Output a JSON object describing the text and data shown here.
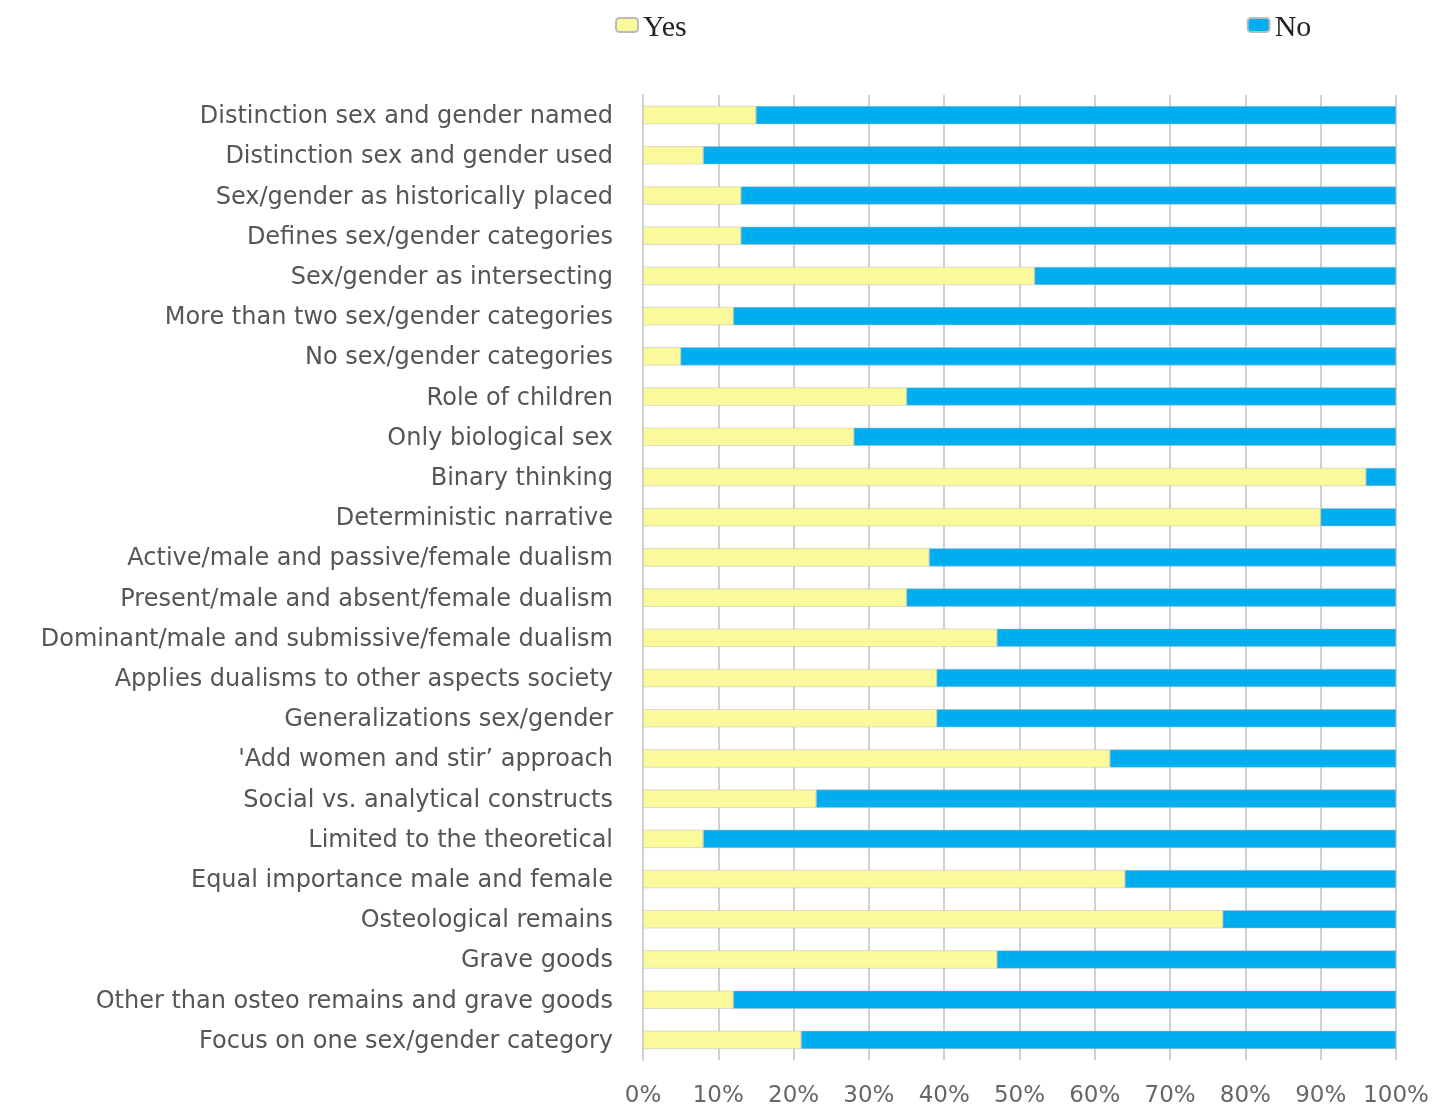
{
  "chart_data": {
    "type": "bar",
    "orientation": "horizontal",
    "stacked": true,
    "categories": [
      "Distinction sex and gender named",
      "Distinction sex and gender used",
      "Sex/gender as historically placed",
      "Defines sex/gender categories",
      "Sex/gender as intersecting",
      "More than two sex/gender categories",
      "No sex/gender categories",
      "Role of children",
      "Only biological sex",
      "Binary thinking",
      "Deterministic narrative",
      "Active/male and passive/female dualism",
      "Present/male and absent/female dualism",
      "Dominant/male and submissive/female dualism",
      "Applies dualisms to other aspects society",
      "Generalizations sex/gender",
      "'Add women and stir’ approach",
      "Social vs. analytical constructs",
      "Limited to the theoretical",
      "Equal importance male and female",
      "Osteological remains",
      "Grave goods",
      "Other than osteo remains and grave goods",
      "Focus on one sex/gender category"
    ],
    "series": [
      {
        "name": "Yes",
        "color": "#fafa9c",
        "values": [
          15,
          8,
          13,
          13,
          52,
          12,
          5,
          35,
          28,
          96,
          90,
          38,
          35,
          47,
          39,
          39,
          62,
          23,
          8,
          64,
          77,
          47,
          12,
          21
        ]
      },
      {
        "name": "No",
        "color": "#00aeef",
        "values": [
          85,
          92,
          87,
          87,
          48,
          88,
          95,
          65,
          72,
          4,
          10,
          62,
          65,
          53,
          61,
          61,
          38,
          77,
          92,
          36,
          23,
          53,
          88,
          79
        ]
      }
    ],
    "xlim": [
      0,
      100
    ],
    "xticks": [
      {
        "value": 0,
        "label": "0%"
      },
      {
        "value": 10,
        "label": "10%"
      },
      {
        "value": 20,
        "label": "20%"
      },
      {
        "value": 30,
        "label": "30%"
      },
      {
        "value": 40,
        "label": "40%"
      },
      {
        "value": 50,
        "label": "50%"
      },
      {
        "value": 60,
        "label": "60%"
      },
      {
        "value": 70,
        "label": "70%"
      },
      {
        "value": 80,
        "label": "80%"
      },
      {
        "value": 90,
        "label": "90%"
      },
      {
        "value": 100,
        "label": "100%"
      }
    ],
    "grid": "x",
    "legend": "top"
  }
}
